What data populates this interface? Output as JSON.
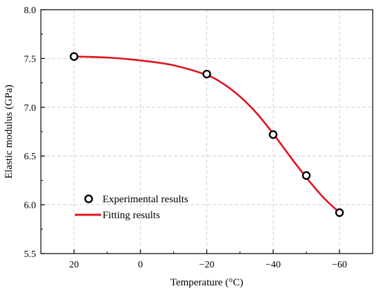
{
  "chart_data": {
    "type": "line",
    "title": "",
    "xlabel": "Temperature (°C)",
    "ylabel": "Elastic modulus (GPa)",
    "x_reversed": true,
    "xlim": [
      30,
      -70
    ],
    "ylim": [
      5.5,
      8.0
    ],
    "x_ticks": [
      20,
      0,
      -20,
      -40,
      -60
    ],
    "x_tick_labels": [
      "20",
      "0",
      "−20",
      "−40",
      "−60"
    ],
    "y_ticks": [
      5.5,
      6.0,
      6.5,
      7.0,
      7.5,
      8.0
    ],
    "y_tick_labels": [
      "5.5",
      "6.0",
      "6.5",
      "7.0",
      "7.5",
      "8.0"
    ],
    "grid": true,
    "legend_position": "lower-left",
    "series": [
      {
        "name": "Experimental results",
        "style": "markers",
        "marker": "open-circle",
        "color": "#000000",
        "x": [
          20,
          -20,
          -40,
          -50,
          -60
        ],
        "y": [
          7.52,
          7.34,
          6.72,
          6.3,
          5.92
        ]
      },
      {
        "name": "Fitting results",
        "style": "line",
        "color": "#e0141e",
        "x": [
          20,
          10,
          0,
          -10,
          -20,
          -25,
          -30,
          -35,
          -40,
          -45,
          -50,
          -55,
          -60
        ],
        "y": [
          7.52,
          7.51,
          7.48,
          7.43,
          7.33,
          7.24,
          7.11,
          6.94,
          6.73,
          6.5,
          6.28,
          6.08,
          5.92
        ]
      }
    ]
  }
}
